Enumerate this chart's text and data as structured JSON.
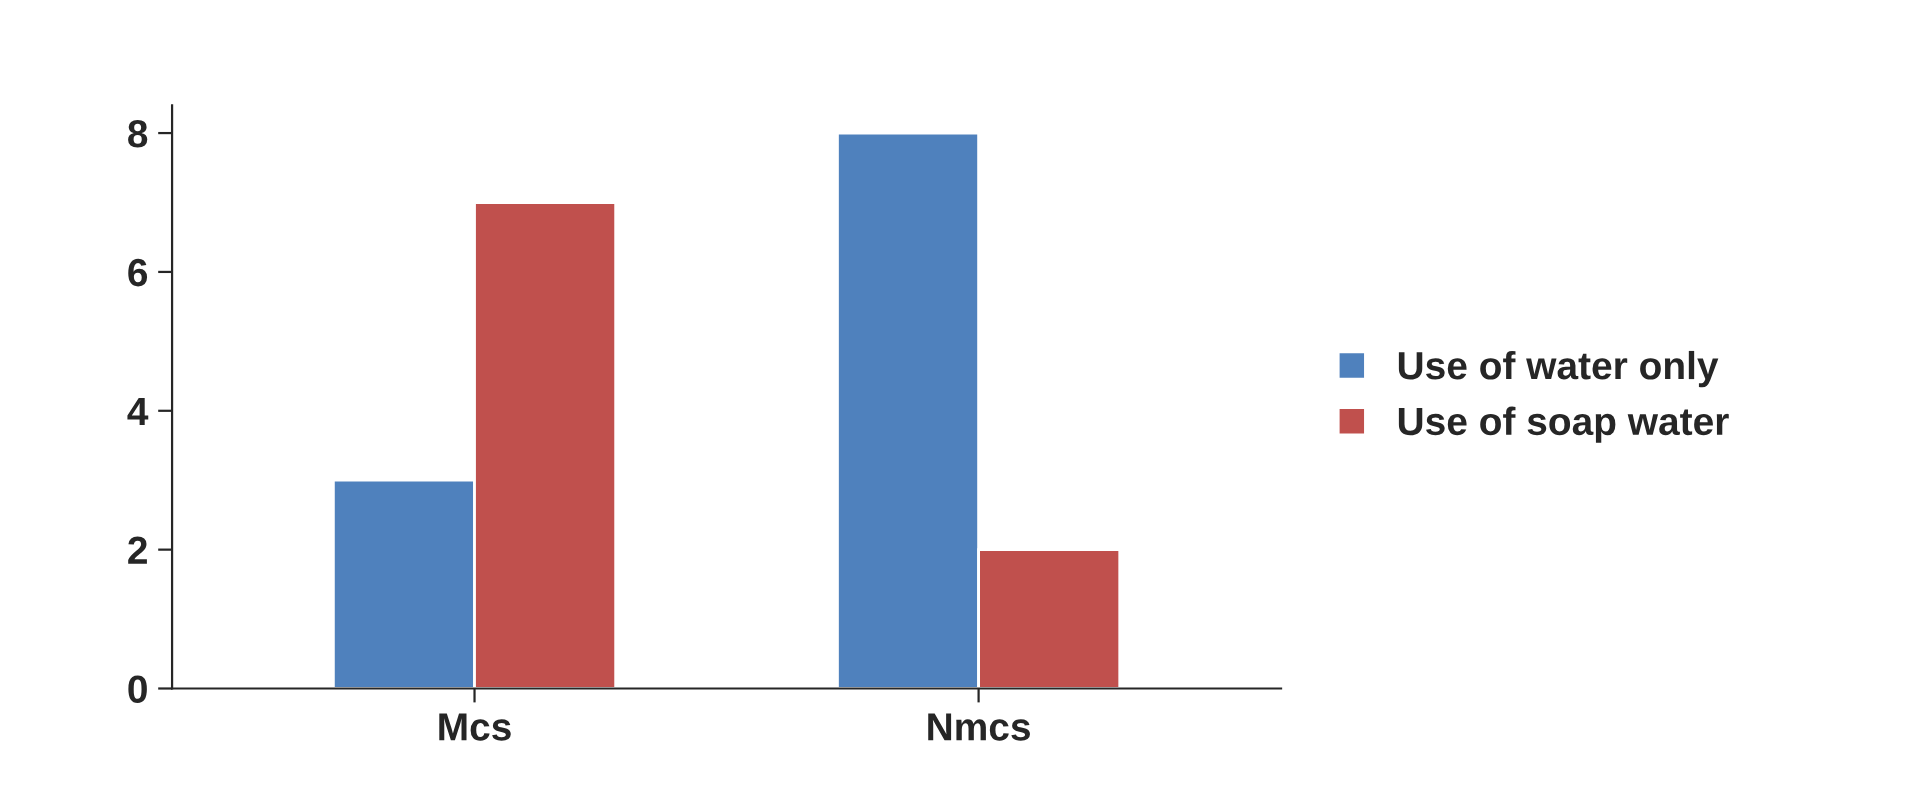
{
  "chart_data": {
    "type": "bar",
    "categories": [
      "Mcs",
      "Nmcs"
    ],
    "series": [
      {
        "name": "Use of water only",
        "color": "#4f81bd",
        "values": [
          3,
          8
        ]
      },
      {
        "name": "Use of soap water",
        "color": "#c0504d",
        "values": [
          7,
          2
        ]
      }
    ],
    "ylim": [
      0,
      8.4
    ],
    "yticks": [
      0,
      2,
      4,
      6,
      8
    ],
    "grid": false,
    "legend": "right"
  }
}
